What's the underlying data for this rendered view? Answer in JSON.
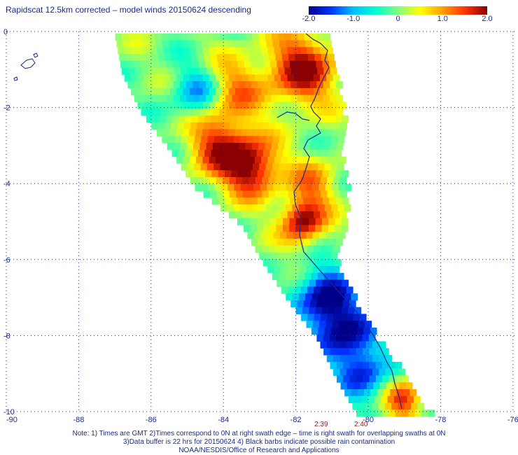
{
  "title": "Rapidscat 12.5km corrected – model winds 20150624 descending",
  "colorbar": {
    "ticks": [
      "-2.0",
      "-1.0",
      "0",
      "1.0",
      "2.0"
    ],
    "tick_values": [
      -2.0,
      -1.0,
      0,
      1.0,
      2.0
    ],
    "colors": [
      "#00008b",
      "#0033ff",
      "#00bfff",
      "#00ffd0",
      "#7fff7f",
      "#ffff00",
      "#ff9f00",
      "#ff3300",
      "#8b0000"
    ]
  },
  "axes": {
    "x_ticks": [
      "-90",
      "-88",
      "-86",
      "-84",
      "-82",
      "-80",
      "-78",
      "-76"
    ],
    "x_values": [
      -90,
      -88,
      -86,
      -84,
      -82,
      -80,
      -78,
      -76
    ],
    "y_ticks": [
      "0",
      "-2",
      "-4",
      "-6",
      "-8",
      "-10"
    ],
    "y_values": [
      0,
      -2,
      -4,
      -6,
      -8,
      -10
    ],
    "lon_range": [
      -90,
      -75.9
    ],
    "lat_range": [
      -10,
      0
    ],
    "grid": true,
    "grid_style": "dotted"
  },
  "time_labels": [
    {
      "text": "2:39",
      "lon": -81.3
    },
    {
      "text": "2:40",
      "lon": -80.2
    }
  ],
  "notes": [
    "Note: 1) Times are GMT 2)Times correspond to 0N at right swath edge – time is right swath for overlapping swaths at 0N",
    "3)Data buffer is 22 hrs for 20150624 4) Black barbs indicate possible rain contamination",
    "NOAA/NESDIS/Office of Research and Applications"
  ],
  "chart_data": {
    "type": "heatmap",
    "title": "Rapidscat 12.5km corrected – model winds 20150624 descending",
    "value_range": [
      -2.0,
      2.0
    ],
    "x_range": [
      -90,
      -75.9
    ],
    "y_range": [
      -10,
      0
    ],
    "swath": {
      "lat": [
        0,
        -1,
        -2,
        -3,
        -4,
        -5,
        -6,
        -7,
        -8,
        -9,
        -10
      ],
      "west_lon": [
        -87.0,
        -86.8,
        -86.3,
        -85.5,
        -84.8,
        -83.5,
        -82.9,
        -82.2,
        -81.4,
        -80.9,
        -80.3
      ],
      "east_lon": [
        -81.1,
        -80.9,
        -80.7,
        -80.8,
        -80.6,
        -80.7,
        -80.9,
        -80.4,
        -79.8,
        -79.0,
        -78.3
      ]
    },
    "features": [
      {
        "lat": -0.9,
        "lon": -81.9,
        "value": 2.0,
        "radius": 1.1
      },
      {
        "lat": -1.4,
        "lon": -83.8,
        "value": 1.1,
        "radius": 1.0
      },
      {
        "lat": -2.9,
        "lon": -84.2,
        "value": 1.6,
        "radius": 1.0
      },
      {
        "lat": -3.5,
        "lon": -83.3,
        "value": 2.0,
        "radius": 0.9
      },
      {
        "lat": -4.9,
        "lon": -81.9,
        "value": 2.0,
        "radius": 0.7
      },
      {
        "lat": -3.9,
        "lon": -81.6,
        "value": 1.0,
        "radius": 0.8
      },
      {
        "lat": -1.5,
        "lon": -84.8,
        "value": -1.2,
        "radius": 0.8
      },
      {
        "lat": -6.9,
        "lon": -81.3,
        "value": -2.0,
        "radius": 0.9
      },
      {
        "lat": -7.9,
        "lon": -80.7,
        "value": -1.9,
        "radius": 1.0
      },
      {
        "lat": -9.6,
        "lon": -79.1,
        "value": 1.6,
        "radius": 0.6
      },
      {
        "lat": -9.0,
        "lon": -80.2,
        "value": -1.4,
        "radius": 0.8
      }
    ]
  }
}
